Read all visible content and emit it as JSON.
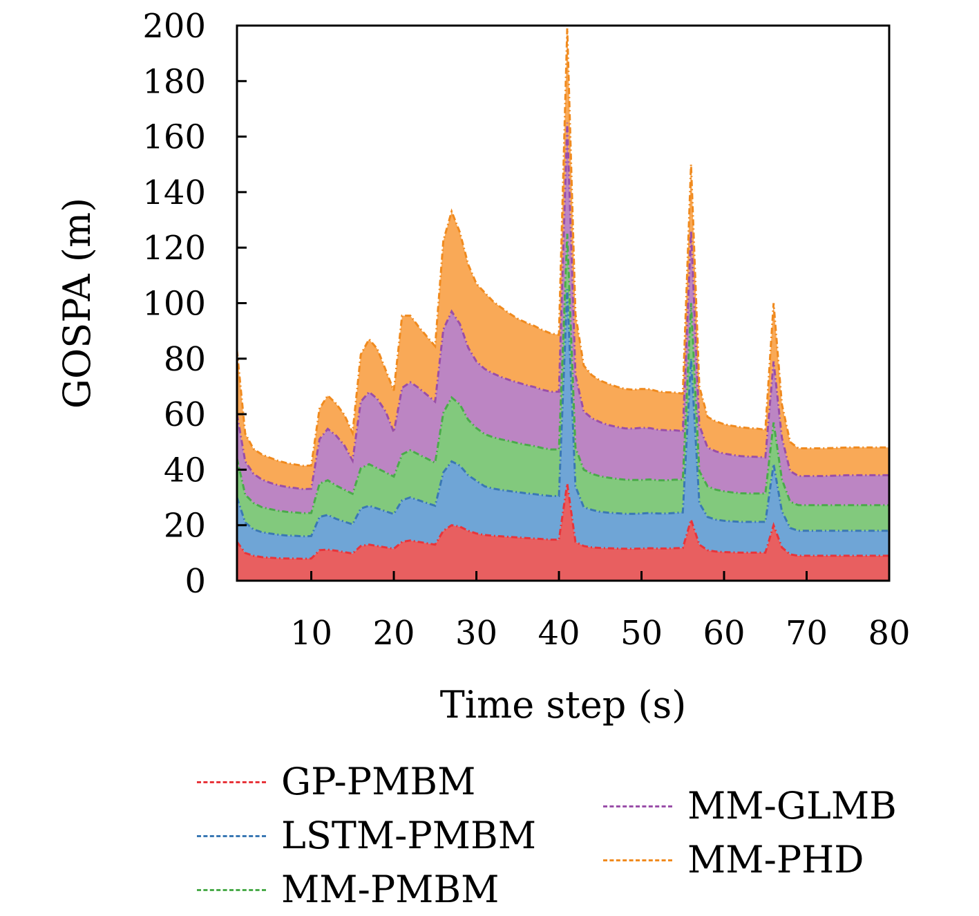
{
  "chart_data": {
    "type": "area",
    "stacked": true,
    "xlabel": "Time step (s)",
    "ylabel": "GOSPA (m)",
    "xlim": [
      1,
      80
    ],
    "ylim": [
      0,
      200
    ],
    "xticks": [
      10,
      20,
      30,
      40,
      50,
      60,
      70,
      80
    ],
    "yticks": [
      0,
      20,
      40,
      60,
      80,
      100,
      120,
      140,
      160,
      180,
      200
    ],
    "grid": false,
    "legend_position": "bottom",
    "x": [
      1,
      2,
      3,
      4,
      5,
      6,
      7,
      8,
      9,
      10,
      11,
      12,
      13,
      14,
      15,
      16,
      17,
      18,
      19,
      20,
      21,
      22,
      23,
      24,
      25,
      26,
      27,
      28,
      29,
      30,
      31,
      32,
      33,
      34,
      35,
      36,
      37,
      38,
      39,
      40,
      41,
      42,
      43,
      44,
      45,
      46,
      47,
      48,
      49,
      50,
      51,
      52,
      53,
      54,
      55,
      56,
      57,
      58,
      59,
      60,
      61,
      62,
      63,
      64,
      65,
      66,
      67,
      68,
      69,
      70,
      71,
      72,
      73,
      74,
      75,
      76,
      77,
      78,
      79,
      80
    ],
    "series": [
      {
        "name": "GP-PMBM",
        "color": "#e8343a",
        "fill": "#e85f60",
        "values": [
          14,
          10,
          9,
          8.5,
          8.3,
          8.1,
          8,
          8,
          7.9,
          8,
          11,
          11.2,
          10.8,
          10.3,
          9.8,
          12.5,
          13,
          12.5,
          12,
          11.5,
          14,
          14.5,
          14,
          13.5,
          13,
          18,
          20,
          19.5,
          18,
          17,
          16.5,
          16.2,
          16,
          15.8,
          15.6,
          15.4,
          15.2,
          15,
          14.8,
          14.8,
          35,
          14,
          12.5,
          12,
          11.8,
          11.7,
          11.6,
          11.5,
          11.5,
          11.6,
          11.7,
          11.6,
          11.6,
          11.7,
          11.8,
          22,
          13,
          11,
          10.5,
          10.3,
          10.2,
          10.1,
          10.1,
          10.1,
          10.1,
          20,
          12,
          9.5,
          9,
          9,
          9,
          9,
          9,
          9,
          9,
          9,
          9,
          9,
          9,
          9
        ]
      },
      {
        "name": "LSTM-PMBM",
        "color": "#3a78b4",
        "fill": "#6fa5d6",
        "values": [
          16,
          11,
          9.5,
          9,
          8.7,
          8.5,
          8.3,
          8.2,
          8.1,
          8.1,
          12,
          12.5,
          11.5,
          11,
          10.5,
          13.5,
          14,
          13.5,
          13,
          12.5,
          15,
          15.5,
          15,
          14.5,
          14,
          21,
          23,
          22,
          20,
          19,
          17.5,
          17,
          16.7,
          16.5,
          16.3,
          16.1,
          16,
          15.8,
          15.7,
          15.7,
          70,
          20,
          14,
          13.5,
          13,
          12.8,
          12.7,
          12.6,
          12.6,
          12.6,
          12.7,
          12.6,
          12.6,
          12.7,
          12.8,
          58,
          15,
          12,
          11.5,
          11.3,
          11.2,
          11.1,
          11.1,
          11.1,
          11.1,
          22,
          13,
          9.5,
          9,
          9,
          9,
          9,
          9,
          9,
          9,
          9,
          9,
          9,
          9,
          9
        ]
      },
      {
        "name": "MM-PMBM",
        "color": "#4aab4a",
        "fill": "#82c97d",
        "values": [
          14,
          10,
          9.5,
          9,
          8.8,
          8.6,
          8.5,
          8.4,
          8.3,
          8.3,
          12,
          12.5,
          12,
          11.5,
          11,
          14.5,
          15,
          14.5,
          14,
          13.5,
          16.5,
          17,
          16.5,
          16,
          15.5,
          21.5,
          23,
          22,
          20,
          19,
          18.8,
          18.5,
          18.2,
          18,
          17.7,
          17.5,
          17.3,
          17,
          16.8,
          16.8,
          20,
          14,
          13.5,
          13,
          12.8,
          12.6,
          12.4,
          12.3,
          12.2,
          12.1,
          12.1,
          12,
          12,
          12,
          11.8,
          20,
          11.5,
          11,
          10.8,
          10.6,
          10.4,
          10.3,
          10.2,
          10.2,
          10.2,
          15,
          11.5,
          9.5,
          9.2,
          9.2,
          9.2,
          9.2,
          9.2,
          9.2,
          9.2,
          9.2,
          9.2,
          9.2,
          9.2,
          9.2
        ]
      },
      {
        "name": "MM-GLMB",
        "color": "#9a4ea8",
        "fill": "#bc85c3",
        "values": [
          16,
          12,
          10.5,
          10,
          9.5,
          9.2,
          9,
          8.8,
          8.7,
          8.7,
          16,
          18.5,
          18,
          16,
          12,
          24,
          26,
          25,
          22,
          16,
          24,
          24.5,
          24,
          23,
          22,
          30,
          31,
          29,
          26,
          24,
          23.5,
          23,
          22.5,
          22,
          21.8,
          21.5,
          21.3,
          21,
          20.8,
          20.8,
          40,
          26,
          21,
          20,
          19.5,
          19,
          18.7,
          18.5,
          18.5,
          18.8,
          18.5,
          18.2,
          18,
          17.8,
          17.5,
          26,
          16.5,
          14,
          13.8,
          13.6,
          13.5,
          13.4,
          13.3,
          13.2,
          13,
          22,
          15,
          11,
          10.5,
          10.5,
          10.5,
          10.5,
          10.6,
          10.7,
          10.8,
          10.8,
          10.8,
          10.8,
          10.8,
          10.8
        ]
      },
      {
        "name": "MM-PHD",
        "color": "#f08a1e",
        "fill": "#f9a957",
        "values": [
          23,
          10,
          9,
          9,
          9,
          8.8,
          8.6,
          8.5,
          8.4,
          8.4,
          11,
          12,
          11.5,
          11,
          10,
          17,
          19,
          18,
          15,
          15,
          26,
          24,
          22,
          21,
          20,
          32,
          36,
          33,
          30,
          28,
          27.5,
          26,
          25,
          24,
          23,
          22.5,
          22,
          21.5,
          21,
          20.5,
          34,
          22,
          16.5,
          15.5,
          15,
          14.8,
          14.5,
          14.2,
          14,
          14,
          14,
          13.8,
          13.7,
          13.6,
          13.5,
          24,
          14,
          11,
          10.8,
          10.6,
          10.5,
          10.4,
          10.3,
          10.2,
          10,
          21,
          12,
          10.5,
          10,
          10,
          10,
          10,
          10,
          10,
          10,
          10,
          10,
          10,
          10,
          10
        ]
      }
    ]
  }
}
